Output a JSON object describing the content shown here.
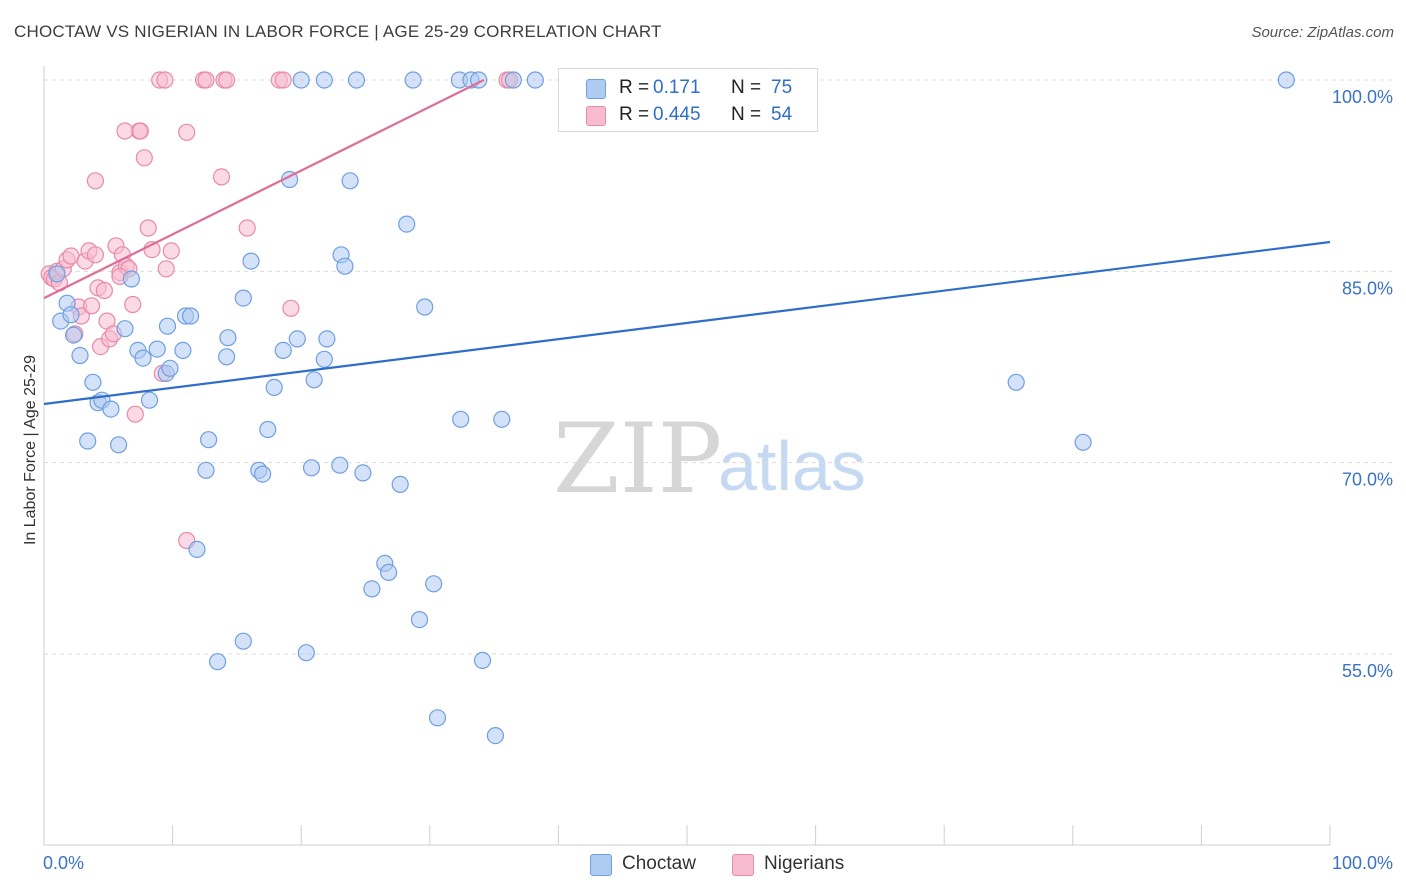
{
  "title": "CHOCTAW VS NIGERIAN IN LABOR FORCE | AGE 25-29 CORRELATION CHART",
  "source": "Source: ZipAtlas.com",
  "watermark": {
    "zip": "ZIP",
    "atlas": "atlas"
  },
  "stats": [
    {
      "r_label": "R =",
      "r_value": "0.171",
      "n_label": "N =",
      "n_value": "75",
      "color": "#aecbf2",
      "border": "#6f9fe0"
    },
    {
      "r_label": "R =",
      "r_value": "0.445",
      "n_label": "N =",
      "n_value": "54",
      "color": "#f7bcd0",
      "border": "#e88aaa"
    }
  ],
  "legend": [
    {
      "label": "Choctaw",
      "color": "#aecbf2",
      "border": "#6f9fe0"
    },
    {
      "label": "Nigerians",
      "color": "#f7bcd0",
      "border": "#e88aaa"
    }
  ],
  "chart_data": {
    "type": "scatter",
    "title": "CHOCTAW VS NIGERIAN IN LABOR FORCE | AGE 25-29 CORRELATION CHART",
    "xlabel": "",
    "ylabel": "In Labor Force | Age 25-29",
    "xlim": [
      0,
      100
    ],
    "ylim": [
      40,
      102
    ],
    "x_tick_labels": [
      "0.0%",
      "100.0%"
    ],
    "y_ticks": [
      55,
      70,
      85,
      100
    ],
    "y_tick_labels": [
      "55.0%",
      "70.0%",
      "85.0%",
      "100.0%"
    ],
    "grid": true,
    "legend_position": "bottom-center",
    "series": [
      {
        "name": "Choctaw",
        "color": "#aecbf2",
        "edge": "#6f9fe0",
        "trend_color": "#2f6ec7",
        "trend": {
          "x": [
            0,
            100
          ],
          "y": [
            74.6,
            87.3
          ]
        },
        "points": [
          [
            1.3,
            81.1
          ],
          [
            1.8,
            82.5
          ],
          [
            2.3,
            80.0
          ],
          [
            2.8,
            78.4
          ],
          [
            3.8,
            76.3
          ],
          [
            4.2,
            74.7
          ],
          [
            4.5,
            74.9
          ],
          [
            5.2,
            74.2
          ],
          [
            3.4,
            71.7
          ],
          [
            5.8,
            71.4
          ],
          [
            6.3,
            80.5
          ],
          [
            6.8,
            84.4
          ],
          [
            7.3,
            78.8
          ],
          [
            7.7,
            78.2
          ],
          [
            8.2,
            74.9
          ],
          [
            8.8,
            78.9
          ],
          [
            9.5,
            77.0
          ],
          [
            9.8,
            77.4
          ],
          [
            9.6,
            80.7
          ],
          [
            10.8,
            78.8
          ],
          [
            11.0,
            81.5
          ],
          [
            11.4,
            81.5
          ],
          [
            12.8,
            71.8
          ],
          [
            12.6,
            69.4
          ],
          [
            14.3,
            79.8
          ],
          [
            14.2,
            78.3
          ],
          [
            15.5,
            82.9
          ],
          [
            16.1,
            85.8
          ],
          [
            16.7,
            69.4
          ],
          [
            17.0,
            69.1
          ],
          [
            17.4,
            72.6
          ],
          [
            17.9,
            75.9
          ],
          [
            18.6,
            78.8
          ],
          [
            19.1,
            92.2
          ],
          [
            19.7,
            79.7
          ],
          [
            20.4,
            55.1
          ],
          [
            20.8,
            69.6
          ],
          [
            21.0,
            76.5
          ],
          [
            21.8,
            78.1
          ],
          [
            22.0,
            79.7
          ],
          [
            23.1,
            86.3
          ],
          [
            23.4,
            85.4
          ],
          [
            23.0,
            69.8
          ],
          [
            23.8,
            92.1
          ],
          [
            24.8,
            69.2
          ],
          [
            25.5,
            60.1
          ],
          [
            26.5,
            62.1
          ],
          [
            26.8,
            61.4
          ],
          [
            27.7,
            68.3
          ],
          [
            28.2,
            88.7
          ],
          [
            29.2,
            57.7
          ],
          [
            29.6,
            82.2
          ],
          [
            30.3,
            60.5
          ],
          [
            30.6,
            50.0
          ],
          [
            32.3,
            100.0
          ],
          [
            33.2,
            100.0
          ],
          [
            32.4,
            73.4
          ],
          [
            34.1,
            54.5
          ],
          [
            35.1,
            48.6
          ],
          [
            35.6,
            73.4
          ],
          [
            36.5,
            100.0
          ],
          [
            38.2,
            100.0
          ],
          [
            11.9,
            63.2
          ],
          [
            13.5,
            54.4
          ],
          [
            15.5,
            56.0
          ],
          [
            20.0,
            100.0
          ],
          [
            21.8,
            100.0
          ],
          [
            24.3,
            100.0
          ],
          [
            28.7,
            100.0
          ],
          [
            33.8,
            100.0
          ],
          [
            75.6,
            76.3
          ],
          [
            80.8,
            71.6
          ],
          [
            96.6,
            100.0
          ],
          [
            1.0,
            84.8
          ],
          [
            2.1,
            81.6
          ]
        ]
      },
      {
        "name": "Nigerians",
        "color": "#f7bcd0",
        "edge": "#e88aaa",
        "trend_color": "#e06d97",
        "trend": {
          "x": [
            0,
            34.2
          ],
          "y": [
            82.9,
            100.0
          ]
        },
        "points": [
          [
            0.4,
            84.8
          ],
          [
            0.6,
            84.5
          ],
          [
            0.8,
            84.4
          ],
          [
            1.0,
            85.0
          ],
          [
            1.2,
            84.1
          ],
          [
            1.5,
            85.2
          ],
          [
            1.8,
            85.9
          ],
          [
            2.1,
            86.2
          ],
          [
            2.4,
            80.1
          ],
          [
            2.7,
            82.2
          ],
          [
            2.9,
            81.5
          ],
          [
            3.2,
            85.8
          ],
          [
            3.5,
            86.6
          ],
          [
            3.7,
            82.3
          ],
          [
            4.0,
            86.3
          ],
          [
            4.2,
            83.7
          ],
          [
            4.4,
            79.1
          ],
          [
            4.7,
            83.5
          ],
          [
            4.9,
            81.1
          ],
          [
            5.1,
            79.7
          ],
          [
            5.4,
            80.1
          ],
          [
            5.6,
            87.0
          ],
          [
            5.9,
            84.9
          ],
          [
            6.1,
            86.3
          ],
          [
            6.4,
            85.4
          ],
          [
            6.6,
            85.2
          ],
          [
            6.9,
            82.4
          ],
          [
            7.1,
            73.8
          ],
          [
            7.4,
            96.0
          ],
          [
            7.5,
            96.0
          ],
          [
            7.8,
            93.9
          ],
          [
            8.1,
            88.4
          ],
          [
            8.4,
            86.7
          ],
          [
            9.0,
            100.0
          ],
          [
            9.4,
            100.0
          ],
          [
            9.2,
            77.0
          ],
          [
            9.5,
            85.2
          ],
          [
            9.9,
            86.6
          ],
          [
            11.1,
            63.9
          ],
          [
            11.1,
            95.9
          ],
          [
            12.4,
            100.0
          ],
          [
            12.6,
            100.0
          ],
          [
            13.8,
            92.4
          ],
          [
            14.0,
            100.0
          ],
          [
            14.2,
            100.0
          ],
          [
            15.8,
            88.4
          ],
          [
            18.3,
            100.0
          ],
          [
            18.6,
            100.0
          ],
          [
            19.2,
            82.1
          ],
          [
            4.0,
            92.1
          ],
          [
            6.3,
            96.0
          ],
          [
            36.0,
            100.0
          ],
          [
            36.2,
            100.0
          ],
          [
            5.9,
            84.6
          ]
        ]
      }
    ]
  }
}
